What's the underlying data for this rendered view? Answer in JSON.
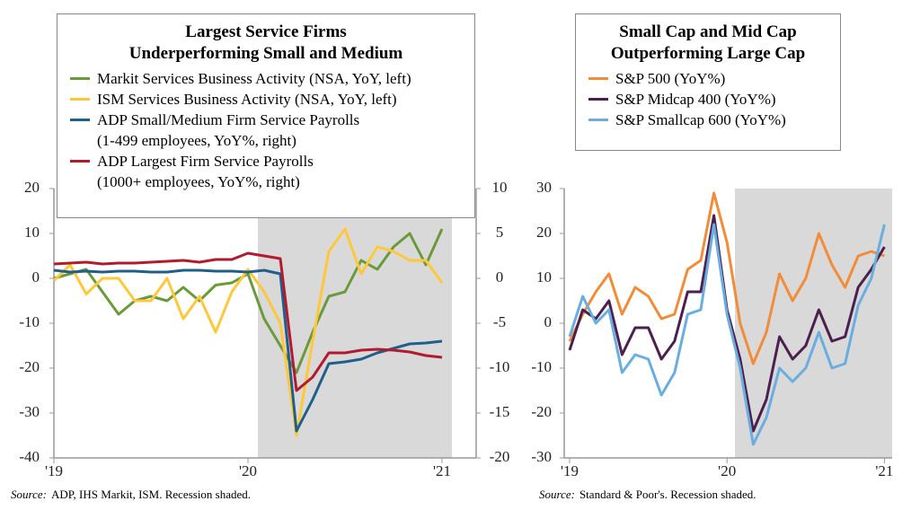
{
  "chart_data": [
    {
      "type": "line",
      "title": "Largest Service Firms\nUnderperforming Small and Medium",
      "categories": [
        "'19",
        null,
        null,
        null,
        null,
        null,
        null,
        null,
        null,
        null,
        null,
        null,
        "'20",
        null,
        null,
        null,
        null,
        null,
        null,
        null,
        null,
        null,
        null,
        null,
        "'21"
      ],
      "series": [
        {
          "name": "Markit Services Business Activity (NSA, YoY, left)",
          "color": "#6a9a3a",
          "axis": "y",
          "values": [
            0,
            1,
            2,
            -3,
            -8,
            -5,
            -4,
            -5,
            -2,
            -5,
            -1.5,
            -1,
            1,
            -9,
            -15,
            -21,
            -12,
            -4,
            -3,
            4,
            2,
            7,
            10,
            3,
            11
          ]
        },
        {
          "name": "ISM Services Business Activity (NSA, YoY, left)",
          "color": "#ffc83a",
          "axis": "y",
          "values": [
            -0.5,
            3,
            -3.5,
            0,
            0,
            -5,
            -5,
            0,
            -9,
            -4,
            -12,
            -3,
            2,
            -3,
            -10,
            -35,
            -14,
            6,
            11,
            1,
            7,
            6,
            4,
            4,
            -1
          ]
        },
        {
          "name": "ADP Small/Medium Firm Service Payrolls\n(1-499 employees, YoY%, right)",
          "color": "#1f5f8b",
          "axis": "y2",
          "values": [
            0.9,
            0.7,
            0.8,
            0.7,
            0.8,
            0.8,
            0.7,
            0.7,
            0.9,
            0.9,
            0.8,
            0.8,
            0.7,
            0.9,
            0.5,
            -17,
            -13.5,
            -9.5,
            -9.3,
            -9,
            -8.3,
            -7.8,
            -7.3,
            -7.2,
            -7
          ]
        },
        {
          "name": "ADP Largest Firm Service Payrolls\n(1000+ employees, YoY%, right)",
          "color": "#b01c2e",
          "axis": "y2",
          "values": [
            1.6,
            1.7,
            1.8,
            1.6,
            1.7,
            1.7,
            1.8,
            1.9,
            2,
            1.8,
            2.1,
            2.1,
            2.8,
            2.5,
            2.2,
            -12.5,
            -11,
            -8.3,
            -8.3,
            -8,
            -7.9,
            -8,
            -8.2,
            -8.6,
            -8.8
          ]
        }
      ],
      "ylim": [
        -40,
        20
      ],
      "yticks": [
        -40,
        -30,
        -20,
        -10,
        0,
        10,
        20
      ],
      "y2lim": [
        -20,
        10
      ],
      "y2ticks": [
        -20,
        -15,
        -10,
        -5,
        0,
        5,
        10
      ],
      "legend": "top",
      "source_label": "Source:",
      "source": "ADP, IHS Markit, ISM. Recession shaded."
    },
    {
      "type": "line",
      "title": "Small Cap and Mid Cap\nOutperforming Large Cap",
      "categories": [
        "'19",
        null,
        null,
        null,
        null,
        null,
        null,
        null,
        null,
        null,
        null,
        null,
        "'20",
        null,
        null,
        null,
        null,
        null,
        null,
        null,
        null,
        null,
        null,
        null,
        "'21"
      ],
      "series": [
        {
          "name": "S&P 500 (YoY%)",
          "color": "#f28c38",
          "values": [
            -4,
            2,
            7,
            11,
            2,
            8,
            6,
            1,
            2,
            12,
            14,
            29,
            18,
            0,
            -9,
            -2,
            11,
            5,
            10,
            20,
            13,
            8,
            15,
            16,
            15
          ]
        },
        {
          "name": "S&P Midcap 400 (YoY%)",
          "color": "#4b1f4e",
          "values": [
            -6,
            3,
            1,
            5,
            -7,
            -1,
            -1,
            -8,
            -4,
            7,
            7,
            24,
            3,
            -8,
            -24,
            -17,
            -3,
            -8,
            -5,
            3,
            -4,
            -3,
            8,
            12,
            17
          ]
        },
        {
          "name": "S&P Smallcap 600 (YoY%)",
          "color": "#6aaee0",
          "values": [
            -3,
            6,
            0,
            3,
            -11,
            -7,
            -8,
            -16,
            -11,
            2,
            3,
            22,
            2,
            -10,
            -27,
            -21,
            -10,
            -13,
            -10,
            -2,
            -10,
            -9,
            4,
            10,
            22
          ]
        }
      ],
      "ylim": [
        -30,
        30
      ],
      "yticks": [
        -30,
        -20,
        -10,
        0,
        10,
        20,
        30
      ],
      "legend": "top",
      "source_label": "Source:",
      "source": "Standard & Poor's. Recession shaded."
    }
  ]
}
